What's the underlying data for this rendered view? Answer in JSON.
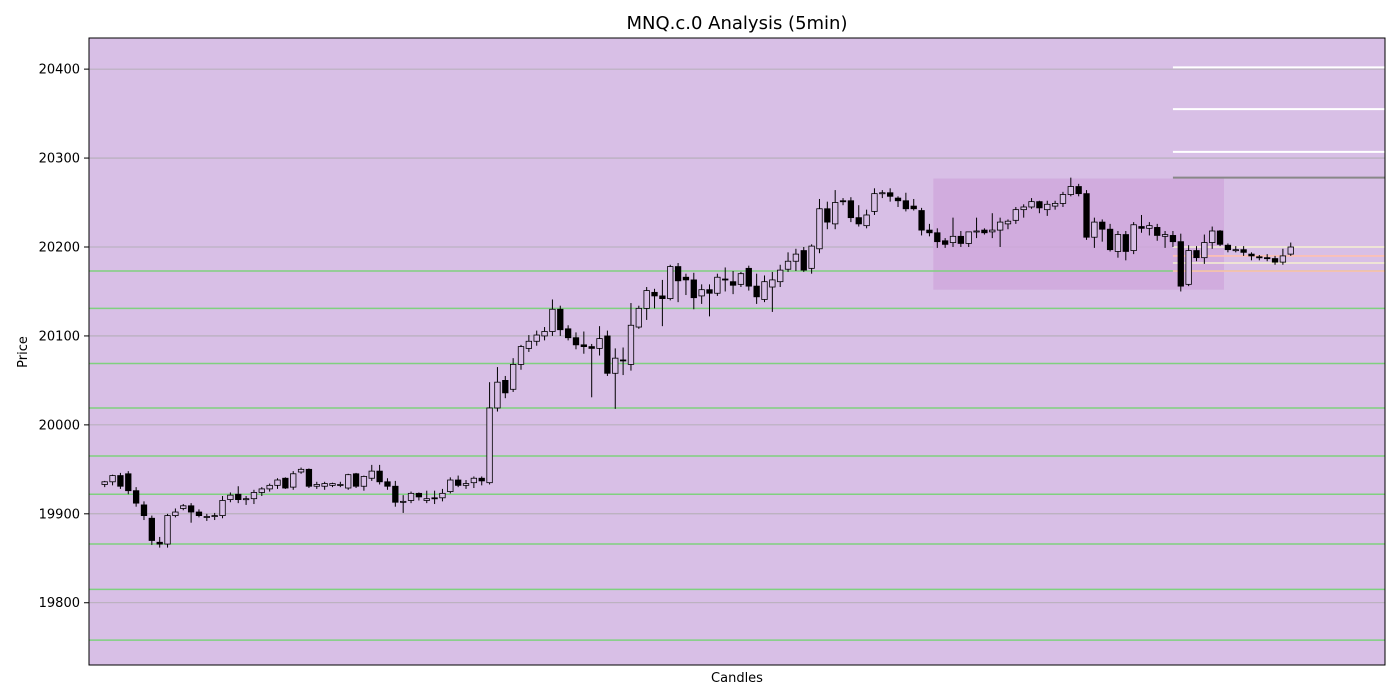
{
  "chart_data": {
    "type": "candlestick",
    "title": "MNQ.c.0 Analysis (5min)",
    "xlabel": "Candles",
    "ylabel": "Price",
    "ylim": [
      19730,
      20435
    ],
    "yticks": [
      19800,
      19900,
      20000,
      20100,
      20200,
      20300,
      20400
    ],
    "grid": "horizontal",
    "colors": {
      "background": "#d8bfe6",
      "grid": "#aaaaaa",
      "up_fill": "#d8bfe6",
      "down_fill": "#000000",
      "candle_edge": "#000000",
      "support_line": "#7fd07f",
      "box_fill": "#d0a8dc",
      "resistance_line": "#ffffff",
      "dark_line": "#888888",
      "near_line_a": "#f5f0d0",
      "near_line_b": "#ffc0b0"
    },
    "candle_count": 151,
    "candles": [
      [
        19933,
        19937,
        19930,
        19936
      ],
      [
        19936,
        19944,
        19932,
        19943
      ],
      [
        19943,
        19946,
        19928,
        19931
      ],
      [
        19945,
        19948,
        19922,
        19926
      ],
      [
        19926,
        19930,
        19908,
        19912
      ],
      [
        19910,
        19914,
        19893,
        19898
      ],
      [
        19895,
        19898,
        19865,
        19870
      ],
      [
        19868,
        19874,
        19862,
        19866
      ],
      [
        19866,
        19900,
        19862,
        19898
      ],
      [
        19898,
        19906,
        19896,
        19902
      ],
      [
        19906,
        19911,
        19904,
        19909
      ],
      [
        19909,
        19912,
        19890,
        19902
      ],
      [
        19902,
        19905,
        19896,
        19898
      ],
      [
        19897,
        19900,
        19892,
        19897
      ],
      [
        19897,
        19901,
        19893,
        19898
      ],
      [
        19898,
        19920,
        19895,
        19915
      ],
      [
        19916,
        19924,
        19913,
        19921
      ],
      [
        19922,
        19931,
        19912,
        19916
      ],
      [
        19916,
        19920,
        19910,
        19917
      ],
      [
        19917,
        19927,
        19911,
        19924
      ],
      [
        19924,
        19930,
        19920,
        19928
      ],
      [
        19928,
        19934,
        19925,
        19932
      ],
      [
        19932,
        19940,
        19928,
        19938
      ],
      [
        19940,
        19941,
        19928,
        19929
      ],
      [
        19930,
        19948,
        19927,
        19945
      ],
      [
        19947,
        19952,
        19945,
        19950
      ],
      [
        19950,
        19951,
        19929,
        19931
      ],
      [
        19931,
        19936,
        19928,
        19933
      ],
      [
        19931,
        19936,
        19927,
        19934
      ],
      [
        19932,
        19935,
        19930,
        19934
      ],
      [
        19932,
        19936,
        19930,
        19933
      ],
      [
        19929,
        19945,
        19927,
        19944
      ],
      [
        19945,
        19946,
        19929,
        19931
      ],
      [
        19931,
        19943,
        19926,
        19942
      ],
      [
        19940,
        19955,
        19937,
        19948
      ],
      [
        19948,
        19955,
        19933,
        19936
      ],
      [
        19936,
        19940,
        19927,
        19931
      ],
      [
        19931,
        19937,
        19908,
        19913
      ],
      [
        19913,
        19921,
        19901,
        19914
      ],
      [
        19915,
        19925,
        19912,
        19923
      ],
      [
        19923,
        19924,
        19915,
        19919
      ],
      [
        19915,
        19926,
        19912,
        19917
      ],
      [
        19918,
        19926,
        19911,
        19917
      ],
      [
        19918,
        19928,
        19914,
        19923
      ],
      [
        19925,
        19941,
        19923,
        19938
      ],
      [
        19938,
        19943,
        19930,
        19932
      ],
      [
        19932,
        19938,
        19928,
        19934
      ],
      [
        19935,
        19942,
        19929,
        19940
      ],
      [
        19940,
        19942,
        19932,
        19937
      ],
      [
        19935,
        20048,
        19933,
        20019
      ],
      [
        20019,
        20065,
        20015,
        20048
      ],
      [
        20050,
        20055,
        20030,
        20036
      ],
      [
        20040,
        20075,
        20037,
        20068
      ],
      [
        20068,
        20090,
        20062,
        20088
      ],
      [
        20086,
        20101,
        20082,
        20094
      ],
      [
        20094,
        20106,
        20089,
        20101
      ],
      [
        20100,
        20110,
        20095,
        20105
      ],
      [
        20105,
        20141,
        20100,
        20130
      ],
      [
        20130,
        20134,
        20100,
        20107
      ],
      [
        20108,
        20112,
        20095,
        20098
      ],
      [
        20098,
        20104,
        20085,
        20090
      ],
      [
        20090,
        20105,
        20080,
        20088
      ],
      [
        20088,
        20091,
        20031,
        20086
      ],
      [
        20086,
        20111,
        20078,
        20097
      ],
      [
        20100,
        20106,
        20055,
        20058
      ],
      [
        20058,
        20086,
        20018,
        20075
      ],
      [
        20073,
        20087,
        20056,
        20072
      ],
      [
        20068,
        20137,
        20061,
        20112
      ],
      [
        20110,
        20134,
        20108,
        20131
      ],
      [
        20131,
        20155,
        20118,
        20151
      ],
      [
        20149,
        20153,
        20131,
        20145
      ],
      [
        20145,
        20163,
        20111,
        20142
      ],
      [
        20142,
        20180,
        20140,
        20178
      ],
      [
        20178,
        20182,
        20138,
        20162
      ],
      [
        20166,
        20170,
        20146,
        20163
      ],
      [
        20163,
        20171,
        20130,
        20143
      ],
      [
        20145,
        20158,
        20136,
        20152
      ],
      [
        20152,
        20158,
        20122,
        20148
      ],
      [
        20148,
        20170,
        20145,
        20166
      ],
      [
        20164,
        20177,
        20150,
        20163
      ],
      [
        20161,
        20173,
        20147,
        20157
      ],
      [
        20158,
        20172,
        20155,
        20170
      ],
      [
        20176,
        20179,
        20151,
        20156
      ],
      [
        20156,
        20170,
        20136,
        20144
      ],
      [
        20141,
        20168,
        20138,
        20161
      ],
      [
        20155,
        20172,
        20127,
        20163
      ],
      [
        20161,
        20180,
        20155,
        20174
      ],
      [
        20175,
        20194,
        20172,
        20184
      ],
      [
        20184,
        20198,
        20173,
        20192
      ],
      [
        20196,
        20200,
        20172,
        20174
      ],
      [
        20176,
        20203,
        20170,
        20201
      ],
      [
        20198,
        20254,
        20193,
        20243
      ],
      [
        20243,
        20251,
        20220,
        20228
      ],
      [
        20226,
        20264,
        20220,
        20250
      ],
      [
        20252,
        20255,
        20247,
        20251
      ],
      [
        20252,
        20256,
        20228,
        20233
      ],
      [
        20233,
        20247,
        20223,
        20226
      ],
      [
        20224,
        20242,
        20221,
        20236
      ],
      [
        20240,
        20266,
        20236,
        20260
      ],
      [
        20260,
        20264,
        20255,
        20261
      ],
      [
        20261,
        20266,
        20251,
        20257
      ],
      [
        20255,
        20257,
        20245,
        20252
      ],
      [
        20252,
        20261,
        20240,
        20243
      ],
      [
        20246,
        20254,
        20241,
        20243
      ],
      [
        20241,
        20244,
        20213,
        20219
      ],
      [
        20219,
        20226,
        20212,
        20216
      ],
      [
        20216,
        20221,
        20199,
        20206
      ],
      [
        20207,
        20210,
        20199,
        20203
      ],
      [
        20205,
        20233,
        20200,
        20212
      ],
      [
        20212,
        20218,
        20200,
        20204
      ],
      [
        20204,
        20215,
        20200,
        20217
      ],
      [
        20217,
        20233,
        20210,
        20218
      ],
      [
        20219,
        20221,
        20214,
        20216
      ],
      [
        20217,
        20238,
        20210,
        20219
      ],
      [
        20219,
        20233,
        20200,
        20228
      ],
      [
        20226,
        20231,
        20220,
        20229
      ],
      [
        20230,
        20245,
        20226,
        20242
      ],
      [
        20242,
        20248,
        20233,
        20245
      ],
      [
        20245,
        20255,
        20243,
        20251
      ],
      [
        20251,
        20252,
        20238,
        20244
      ],
      [
        20242,
        20252,
        20235,
        20248
      ],
      [
        20246,
        20252,
        20242,
        20249
      ],
      [
        20249,
        20262,
        20245,
        20259
      ],
      [
        20259,
        20278,
        20257,
        20268
      ],
      [
        20268,
        20271,
        20257,
        20260
      ],
      [
        20260,
        20264,
        20208,
        20211
      ],
      [
        20211,
        20233,
        20199,
        20228
      ],
      [
        20228,
        20231,
        20206,
        20220
      ],
      [
        20220,
        20226,
        20195,
        20197
      ],
      [
        20195,
        20218,
        20188,
        20214
      ],
      [
        20214,
        20218,
        20185,
        20195
      ],
      [
        20196,
        20228,
        20192,
        20225
      ],
      [
        20223,
        20236,
        20216,
        20221
      ],
      [
        20221,
        20228,
        20213,
        20224
      ],
      [
        20222,
        20226,
        20207,
        20213
      ],
      [
        20212,
        20218,
        20199,
        20214
      ],
      [
        20213,
        20218,
        20200,
        20206
      ],
      [
        20206,
        20215,
        20150,
        20156
      ],
      [
        20158,
        20202,
        20156,
        20196
      ],
      [
        20196,
        20201,
        20184,
        20188
      ],
      [
        20188,
        20214,
        20181,
        20205
      ],
      [
        20205,
        20223,
        20198,
        20218
      ],
      [
        20218,
        20219,
        20201,
        20203
      ],
      [
        20202,
        20204,
        20194,
        20197
      ],
      [
        20197,
        20201,
        20194,
        20197
      ],
      [
        20197,
        20201,
        20190,
        20194
      ],
      [
        20192,
        20194,
        20185,
        20190
      ],
      [
        20189,
        20191,
        20185,
        20188
      ],
      [
        20188,
        20192,
        20184,
        20187
      ],
      [
        20187,
        20190,
        20180,
        20183
      ],
      [
        20183,
        20198,
        20180,
        20190
      ],
      [
        20192,
        20205,
        20190,
        20200
      ]
    ],
    "support_levels": [
      20173,
      20131,
      20069,
      20019,
      19965,
      19922,
      19866,
      19815,
      19758
    ],
    "zone": {
      "x_start": 106,
      "x_end": 143,
      "y_low": 20152,
      "y_high": 20277
    },
    "resistance_levels": [
      20402,
      20355,
      20307
    ],
    "dark_level": 20278,
    "near_levels": [
      20200,
      20190,
      20182,
      20173
    ],
    "right_lines_start": 136
  }
}
